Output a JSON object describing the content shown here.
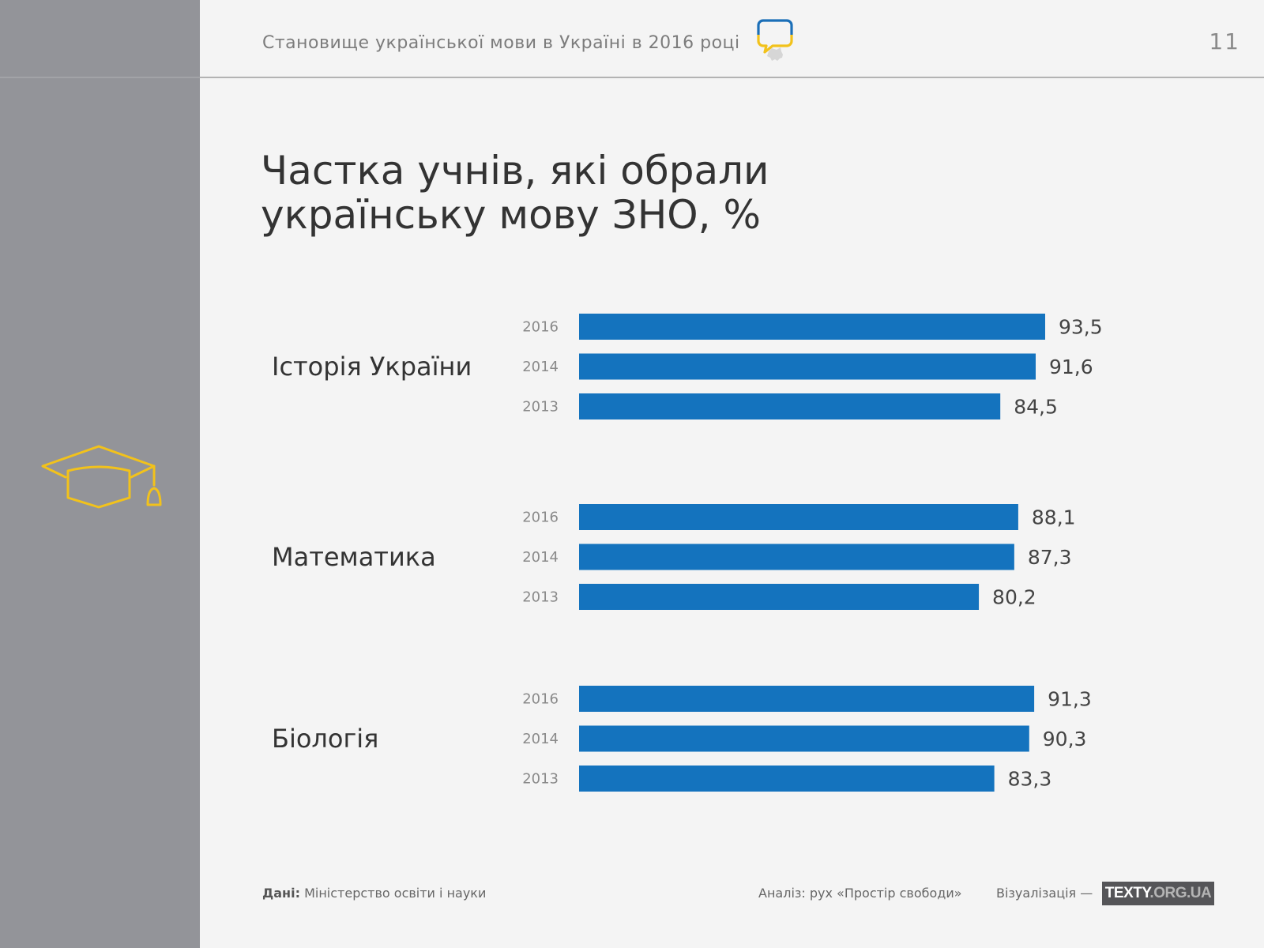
{
  "header": {
    "title": "Становище української мови в Україні в 2016 році",
    "page_number": "11",
    "logo_icon": "speech-bubble-ukraine-icon"
  },
  "sidebar": {
    "icon": "graduation-cap-icon"
  },
  "colors": {
    "bar": "#1473be",
    "sidebar": "#939499",
    "accent_yellow": "#f2c21b",
    "accent_blue": "#1b6fb8",
    "background": "#f4f4f4"
  },
  "chart_data": {
    "type": "bar",
    "orientation": "horizontal",
    "title": "Частка учнів, які обрали українську мову ЗНО, %",
    "title_lines": [
      "Частка учнів, які обрали",
      "українську мову ЗНО, %"
    ],
    "xlabel": "",
    "ylabel": "",
    "xlim": [
      0,
      100
    ],
    "grid": false,
    "groups": [
      {
        "name": "Історія України",
        "categories": [
          "2016",
          "2014",
          "2013"
        ],
        "values": [
          93.5,
          91.6,
          84.5
        ],
        "labels": [
          "93,5",
          "91,6",
          "84,5"
        ]
      },
      {
        "name": "Математика",
        "categories": [
          "2016",
          "2014",
          "2013"
        ],
        "values": [
          88.1,
          87.3,
          80.2
        ],
        "labels": [
          "88,1",
          "87,3",
          "80,2"
        ]
      },
      {
        "name": "Біологія",
        "categories": [
          "2016",
          "2014",
          "2013"
        ],
        "values": [
          91.3,
          90.3,
          83.3
        ],
        "labels": [
          "91,3",
          "90,3",
          "83,3"
        ]
      }
    ]
  },
  "footer": {
    "source_label": "Дані:",
    "source_value": "Міністерство освіти і науки",
    "analysis": "Аналіз: рух «Простір свободи»",
    "visualization": "Візуалізація —",
    "brand_main": "TEXTY",
    "brand_suffix": ".ORG.UA"
  }
}
